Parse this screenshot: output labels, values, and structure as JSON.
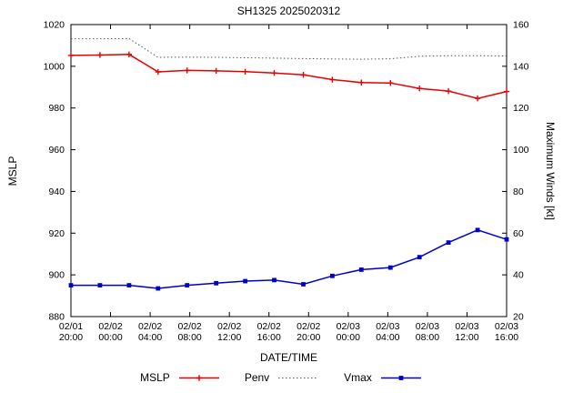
{
  "chart_data": {
    "type": "line",
    "title": "SH1325 2025020312",
    "xlabel": "DATE/TIME",
    "ylabel_left": "MSLP",
    "ylabel_right": "Maximum Winds [kt]",
    "ylim_left": [
      880,
      1020
    ],
    "ylim_right": [
      20,
      160
    ],
    "y_left_ticks": [
      880,
      900,
      920,
      940,
      960,
      980,
      1000,
      1020
    ],
    "y_right_ticks": [
      20,
      40,
      60,
      80,
      100,
      120,
      140,
      160
    ],
    "x_range_hours": [
      0,
      44
    ],
    "x_ticks_hours": [
      0,
      4,
      8,
      12,
      16,
      20,
      24,
      28,
      32,
      36,
      40,
      44
    ],
    "x_tick_labels": [
      [
        "02/01",
        "20:00"
      ],
      [
        "02/02",
        "00:00"
      ],
      [
        "02/02",
        "04:00"
      ],
      [
        "02/02",
        "08:00"
      ],
      [
        "02/02",
        "12:00"
      ],
      [
        "02/02",
        "16:00"
      ],
      [
        "02/02",
        "20:00"
      ],
      [
        "02/03",
        "00:00"
      ],
      [
        "02/03",
        "04:00"
      ],
      [
        "02/03",
        "08:00"
      ],
      [
        "02/03",
        "12:00"
      ],
      [
        "02/03",
        "16:00"
      ]
    ],
    "grid": false,
    "legend_position": "bottom-center",
    "x_hours": [
      0,
      2.93,
      5.87,
      8.8,
      11.73,
      14.67,
      17.6,
      20.53,
      23.47,
      26.4,
      29.33,
      32.27,
      35.2,
      38.13,
      41.07,
      44
    ],
    "series": [
      {
        "name": "MSLP",
        "axis": "left",
        "color": "#e60000",
        "style": "solid",
        "marker": "plus",
        "values": [
          1005.2,
          1005.4,
          1005.7,
          997.3,
          998.0,
          997.8,
          997.4,
          996.8,
          995.9,
          993.6,
          992.2,
          992.0,
          989.4,
          988.1,
          984.6,
          987.9
        ]
      },
      {
        "name": "Penv",
        "axis": "left",
        "color": "#555555",
        "style": "dotted",
        "marker": "none",
        "values": [
          1013.2,
          1013.2,
          1013.3,
          1004.3,
          1004.4,
          1004.3,
          1004.1,
          1003.9,
          1003.7,
          1003.5,
          1003.4,
          1003.6,
          1004.8,
          1005.1,
          1005.1,
          1004.9
        ]
      },
      {
        "name": "Vmax",
        "axis": "right",
        "color": "#0000cc",
        "style": "solid",
        "marker": "square",
        "values": [
          35,
          35,
          35,
          33.5,
          35,
          36,
          37,
          37.5,
          35.5,
          39.5,
          42.5,
          43.5,
          48.5,
          55.5,
          61.5,
          57
        ]
      }
    ]
  }
}
